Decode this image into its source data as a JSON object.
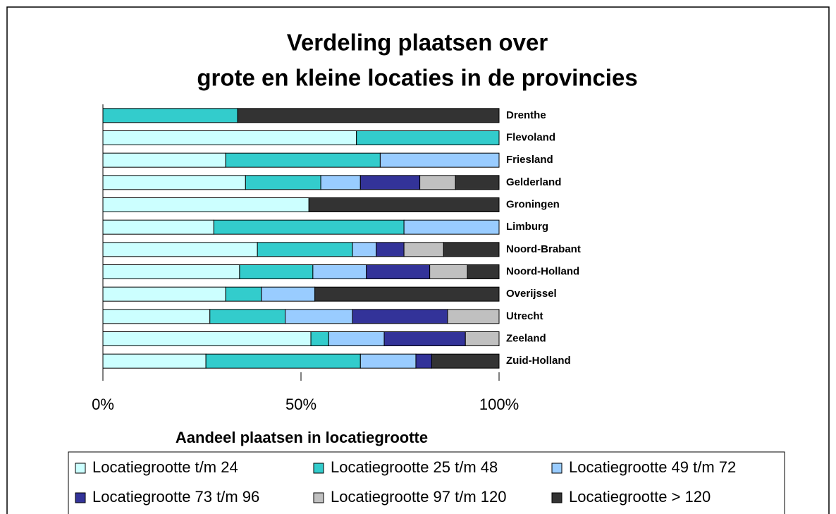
{
  "chart_data": {
    "type": "stacked-bar-horizontal-percent",
    "title": [
      "Verdeling plaatsen over",
      "grote en kleine locaties in de provincies"
    ],
    "x_label": "Aandeel plaatsen in locatiegrootte",
    "categories": [
      "Drenthe",
      "Flevoland",
      "Friesland",
      "Gelderland",
      "Groningen",
      "Limburg",
      "Noord-Brabant",
      "Noord-Holland",
      "Overijssel",
      "Utrecht",
      "Zeeland",
      "Zuid-Holland"
    ],
    "series": [
      {
        "name": "Locatiegrootte t/m 24",
        "color": "#ccffff",
        "values": [
          0,
          64,
          31,
          36,
          52,
          28,
          39,
          34.5,
          31,
          27,
          52.5,
          26
        ]
      },
      {
        "name": "Locatiegrootte 25 t/m 48",
        "color": "#33cccc",
        "values": [
          34,
          36,
          39,
          19,
          0,
          48,
          24,
          18.5,
          9,
          19,
          4.5,
          39
        ]
      },
      {
        "name": "Locatiegrootte 49 t/m 72",
        "color": "#99ccff",
        "values": [
          0,
          0,
          30,
          10,
          0,
          24,
          6,
          13.5,
          13.5,
          17,
          14,
          14
        ]
      },
      {
        "name": "Locatiegrootte 73 t/m 96",
        "color": "#333399",
        "values": [
          0,
          0,
          0,
          15,
          0,
          0,
          7,
          16,
          0,
          24,
          20.5,
          4
        ]
      },
      {
        "name": "Locatiegrootte 97 t/m 120",
        "color": "#c0c0c0",
        "values": [
          0,
          0,
          0,
          9,
          0,
          0,
          10,
          9.5,
          0,
          13,
          8.5,
          0
        ]
      },
      {
        "name": "Locatiegrootte > 120",
        "color": "#333333",
        "values": [
          66,
          0,
          0,
          11,
          48,
          0,
          14,
          8,
          46.5,
          0,
          0,
          17
        ]
      }
    ],
    "xlim": [
      0,
      100
    ],
    "xticks": [
      {
        "value": 0,
        "label": "0%"
      },
      {
        "value": 50,
        "label": "50%"
      },
      {
        "value": 100,
        "label": "100%"
      }
    ],
    "legend": "bottom"
  }
}
